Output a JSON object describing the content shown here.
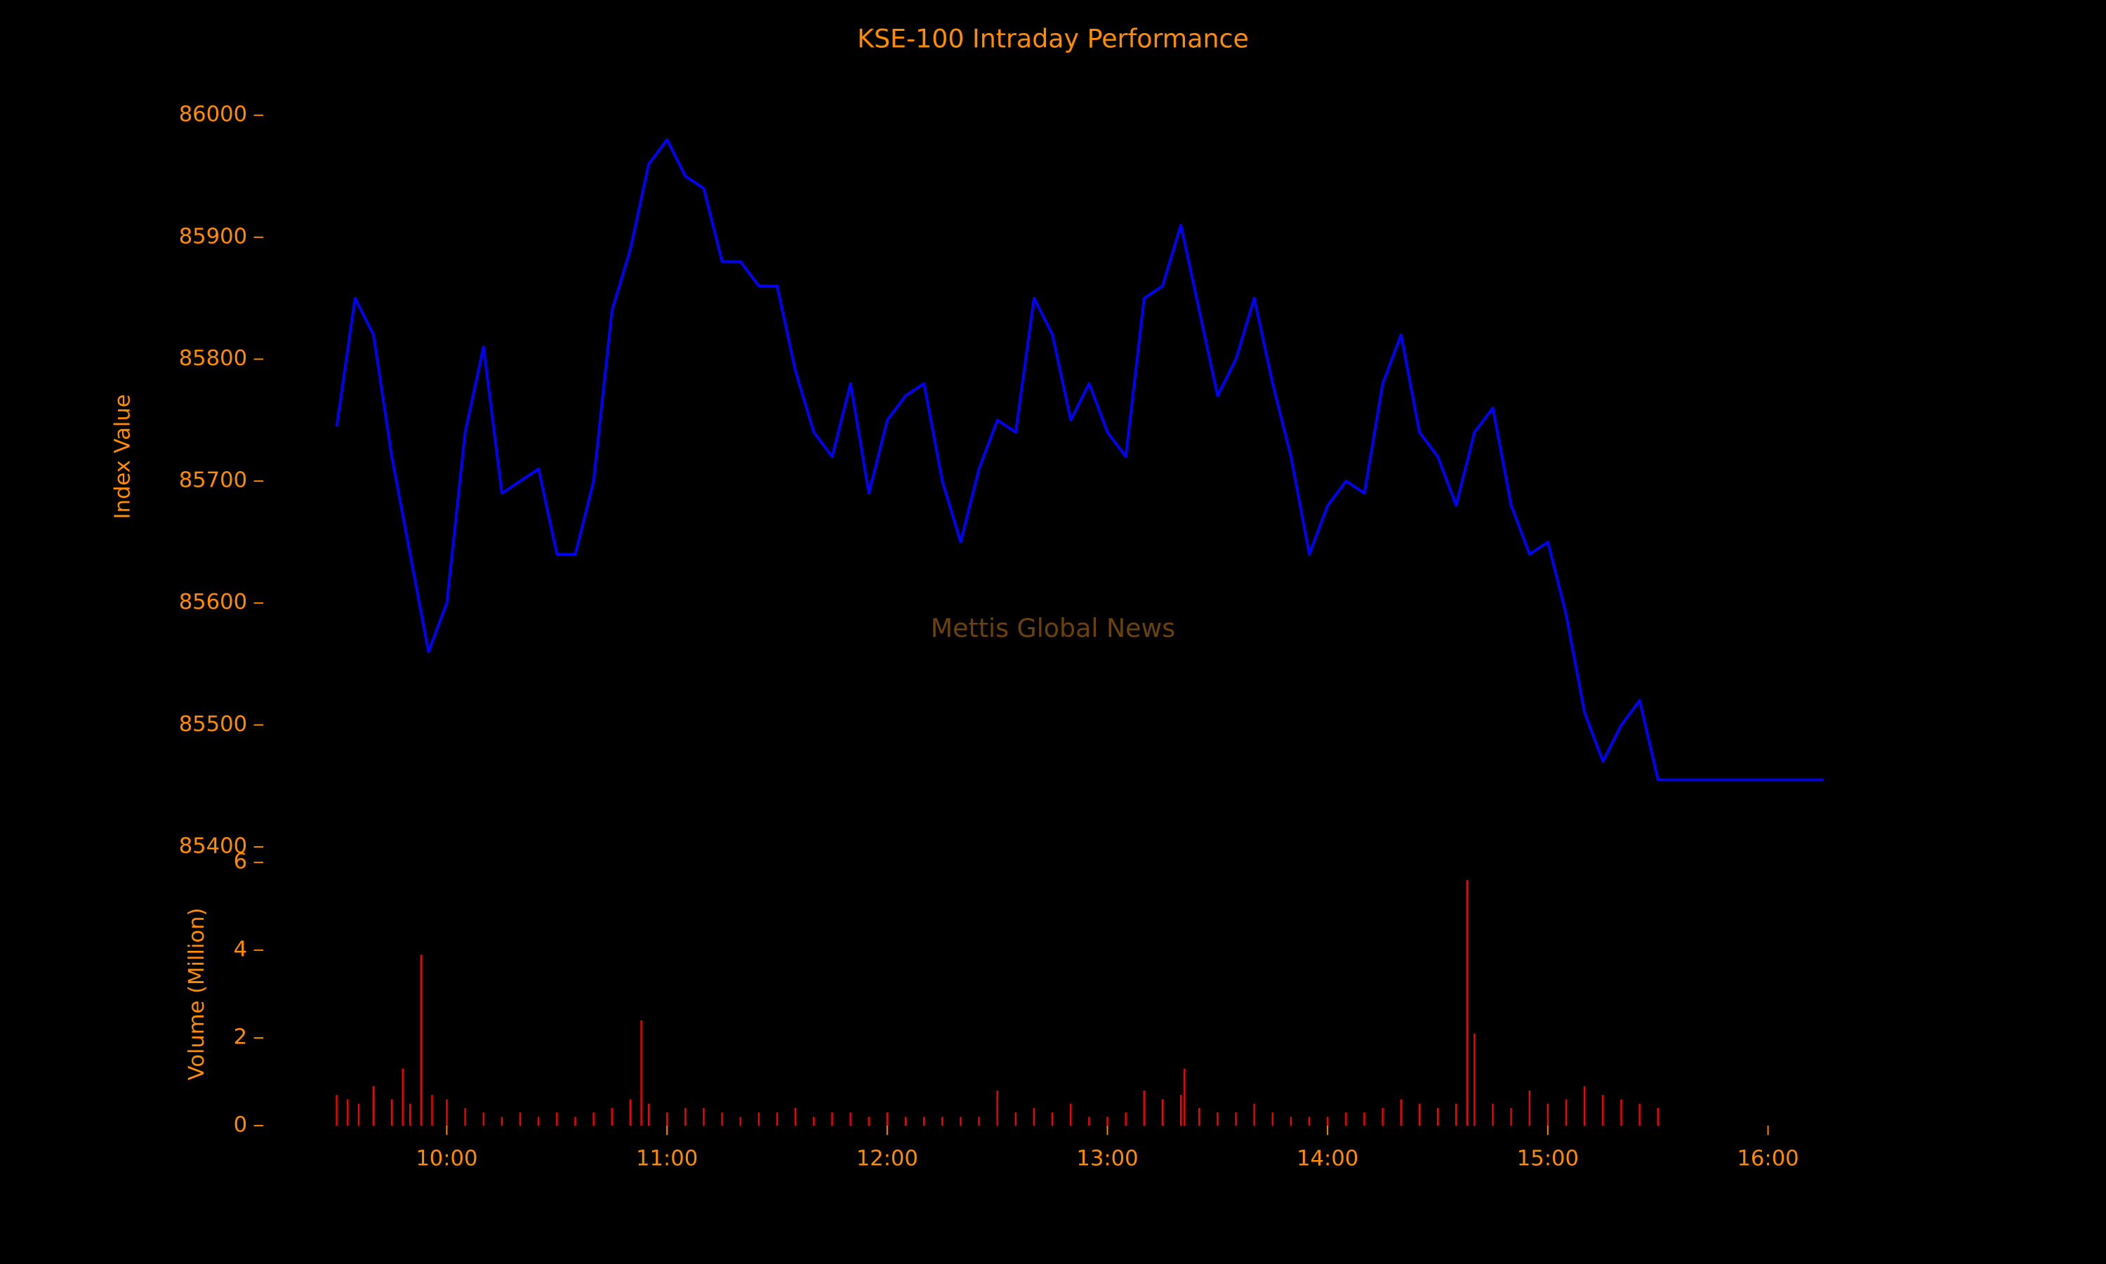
{
  "chart_data": [
    {
      "type": "line",
      "title": "KSE-100 Intraday Performance",
      "ylabel": "Index Value",
      "watermark": "Mettis Global News",
      "x": [
        "09:30",
        "09:35",
        "09:40",
        "09:45",
        "09:50",
        "09:55",
        "10:00",
        "10:05",
        "10:10",
        "10:15",
        "10:20",
        "10:25",
        "10:30",
        "10:35",
        "10:40",
        "10:45",
        "10:50",
        "10:55",
        "11:00",
        "11:05",
        "11:10",
        "11:15",
        "11:20",
        "11:25",
        "11:30",
        "11:35",
        "11:40",
        "11:45",
        "11:50",
        "11:55",
        "12:00",
        "12:05",
        "12:10",
        "12:15",
        "12:20",
        "12:25",
        "12:30",
        "12:35",
        "12:40",
        "12:45",
        "12:50",
        "12:55",
        "13:00",
        "13:05",
        "13:10",
        "13:15",
        "13:20",
        "13:25",
        "13:30",
        "13:35",
        "13:40",
        "13:45",
        "13:50",
        "13:55",
        "14:00",
        "14:05",
        "14:10",
        "14:15",
        "14:20",
        "14:25",
        "14:30",
        "14:35",
        "14:40",
        "14:45",
        "14:50",
        "14:55",
        "15:00",
        "15:05",
        "15:10",
        "15:15",
        "15:20",
        "15:25",
        "15:30",
        "15:45",
        "16:00",
        "16:15"
      ],
      "series": [
        {
          "name": "KSE-100",
          "color": "#0000ff",
          "values": [
            85745,
            85850,
            85820,
            85720,
            85640,
            85560,
            85600,
            85740,
            85810,
            85690,
            85700,
            85710,
            85640,
            85640,
            85700,
            85840,
            85890,
            85960,
            85980,
            85950,
            85940,
            85880,
            85880,
            85860,
            85860,
            85790,
            85740,
            85720,
            85780,
            85690,
            85750,
            85770,
            85780,
            85700,
            85650,
            85710,
            85750,
            85740,
            85850,
            85820,
            85750,
            85780,
            85740,
            85720,
            85850,
            85860,
            85910,
            85840,
            85770,
            85800,
            85850,
            85780,
            85720,
            85640,
            85680,
            85700,
            85690,
            85780,
            85820,
            85740,
            85720,
            85680,
            85740,
            85760,
            85680,
            85640,
            85650,
            85590,
            85510,
            85470,
            85500,
            85520,
            85455,
            85455,
            85455,
            85455
          ]
        }
      ],
      "xlim": [
        "09:10",
        "16:35"
      ],
      "ylim": [
        85395,
        86045
      ],
      "yticks": [
        85400,
        85500,
        85600,
        85700,
        85800,
        85900,
        86000
      ]
    },
    {
      "type": "bar",
      "ylabel": "Volume (Million)",
      "color": "#ff0000",
      "x": [
        "09:30",
        "09:33",
        "09:36",
        "09:40",
        "09:45",
        "09:48",
        "09:50",
        "09:53",
        "09:56",
        "10:00",
        "10:05",
        "10:10",
        "10:15",
        "10:20",
        "10:25",
        "10:30",
        "10:35",
        "10:40",
        "10:45",
        "10:50",
        "10:53",
        "10:55",
        "11:00",
        "11:05",
        "11:10",
        "11:15",
        "11:20",
        "11:25",
        "11:30",
        "11:35",
        "11:40",
        "11:45",
        "11:50",
        "11:55",
        "12:00",
        "12:05",
        "12:10",
        "12:15",
        "12:20",
        "12:25",
        "12:30",
        "12:35",
        "12:40",
        "12:45",
        "12:50",
        "12:55",
        "13:00",
        "13:05",
        "13:10",
        "13:15",
        "13:20",
        "13:21",
        "13:25",
        "13:30",
        "13:35",
        "13:40",
        "13:45",
        "13:50",
        "13:55",
        "14:00",
        "14:05",
        "14:10",
        "14:15",
        "14:20",
        "14:25",
        "14:30",
        "14:35",
        "14:38",
        "14:40",
        "14:45",
        "14:50",
        "14:55",
        "15:00",
        "15:05",
        "15:10",
        "15:15",
        "15:20",
        "15:25",
        "15:30"
      ],
      "values": [
        0.7,
        0.6,
        0.5,
        0.9,
        0.6,
        1.3,
        0.5,
        3.9,
        0.7,
        0.6,
        0.4,
        0.3,
        0.2,
        0.3,
        0.2,
        0.3,
        0.2,
        0.3,
        0.4,
        0.6,
        2.4,
        0.5,
        0.3,
        0.4,
        0.4,
        0.3,
        0.2,
        0.3,
        0.3,
        0.4,
        0.2,
        0.3,
        0.3,
        0.2,
        0.3,
        0.2,
        0.2,
        0.2,
        0.2,
        0.2,
        0.8,
        0.3,
        0.4,
        0.3,
        0.5,
        0.2,
        0.2,
        0.3,
        0.8,
        0.6,
        0.7,
        1.3,
        0.4,
        0.3,
        0.3,
        0.5,
        0.3,
        0.2,
        0.2,
        0.2,
        0.3,
        0.3,
        0.4,
        0.6,
        0.5,
        0.4,
        0.5,
        5.6,
        2.1,
        0.5,
        0.4,
        0.8,
        0.5,
        0.6,
        0.9,
        0.7,
        0.6,
        0.5,
        0.4
      ],
      "xlim": [
        "09:10",
        "16:35"
      ],
      "ylim": [
        0,
        5.88
      ],
      "xticks": [
        "10:00",
        "11:00",
        "12:00",
        "13:00",
        "14:00",
        "15:00",
        "16:00"
      ],
      "yticks": [
        0,
        2,
        4,
        6
      ]
    }
  ]
}
